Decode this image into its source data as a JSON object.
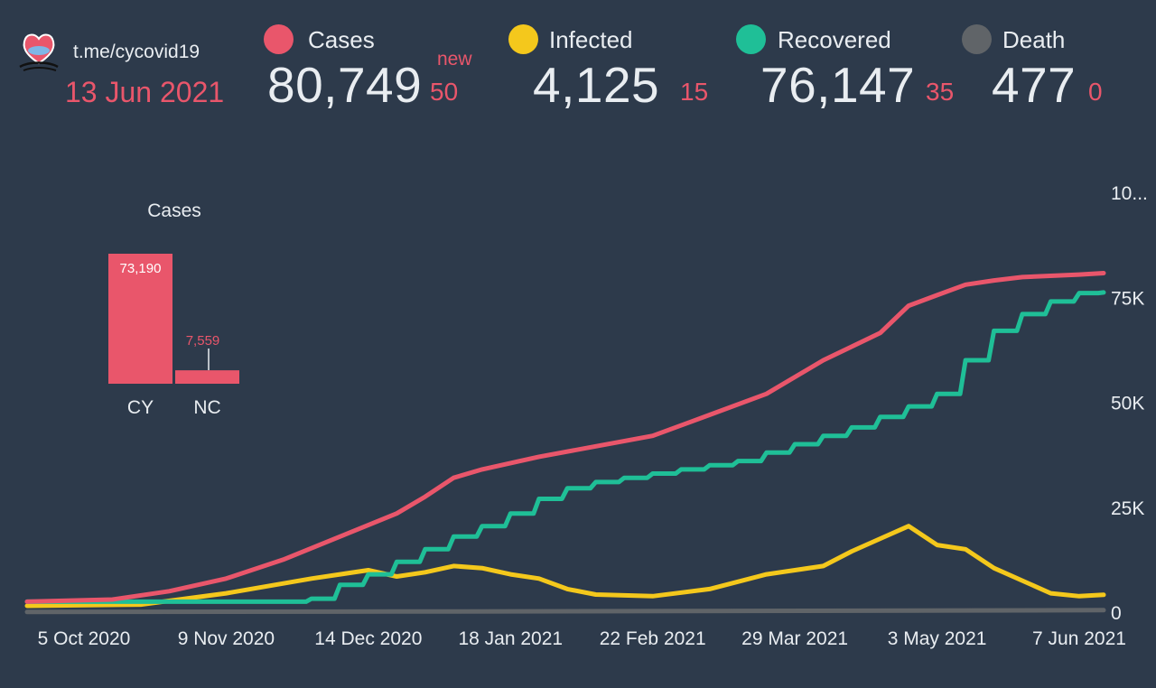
{
  "header": {
    "source": "t.me/cycovid19",
    "date": "13 Jun 2021",
    "new_word": "new"
  },
  "stats": [
    {
      "label": "Cases",
      "value": "80,749",
      "new": "50",
      "color": "#e9566b"
    },
    {
      "label": "Infected",
      "value": "4,125",
      "new": "15",
      "color": "#f4c81c"
    },
    {
      "label": "Recovered",
      "value": "76,147",
      "new": "35",
      "color": "#1fbf97"
    },
    {
      "label": "Death",
      "value": "477",
      "new": "0",
      "color": "#606468"
    }
  ],
  "chart_data": [
    {
      "type": "line",
      "x_ticks": [
        "5 Oct 2020",
        "9 Nov 2020",
        "14 Dec 2020",
        "18 Jan 2021",
        "22 Feb 2021",
        "29 Mar 2021",
        "3 May 2021",
        "7 Jun 2021"
      ],
      "y_ticks": [
        "0",
        "25K",
        "50K",
        "75K",
        "10..."
      ],
      "ylim": [
        0,
        100000
      ],
      "x_start": "2020-09-21",
      "x_end": "2021-06-13",
      "series": [
        {
          "name": "Cases",
          "color": "#e9566b",
          "x": [
            "2020-09-21",
            "2020-10-12",
            "2020-10-26",
            "2020-11-09",
            "2020-11-23",
            "2020-12-07",
            "2020-12-21",
            "2020-12-28",
            "2021-01-04",
            "2021-01-11",
            "2021-01-18",
            "2021-01-25",
            "2021-02-08",
            "2021-02-22",
            "2021-03-08",
            "2021-03-22",
            "2021-04-05",
            "2021-04-19",
            "2021-04-26",
            "2021-05-03",
            "2021-05-10",
            "2021-05-17",
            "2021-05-24",
            "2021-06-07",
            "2021-06-13"
          ],
          "y": [
            2500,
            3000,
            5000,
            8000,
            12500,
            18000,
            23500,
            27500,
            32000,
            34000,
            35500,
            37000,
            39500,
            42000,
            47000,
            52000,
            60000,
            66500,
            73000,
            75500,
            78000,
            79000,
            79800,
            80400,
            80749
          ]
        },
        {
          "name": "Recovered",
          "color": "#1fbf97",
          "x": [
            "2020-09-21",
            "2020-11-30",
            "2020-12-07",
            "2020-12-14",
            "2020-12-21",
            "2020-12-28",
            "2021-01-04",
            "2021-01-11",
            "2021-01-18",
            "2021-01-25",
            "2021-02-01",
            "2021-02-08",
            "2021-02-15",
            "2021-02-22",
            "2021-03-01",
            "2021-03-08",
            "2021-03-15",
            "2021-03-22",
            "2021-03-29",
            "2021-04-05",
            "2021-04-12",
            "2021-04-19",
            "2021-04-26",
            "2021-05-03",
            "2021-05-10",
            "2021-05-17",
            "2021-05-24",
            "2021-05-31",
            "2021-06-07",
            "2021-06-13"
          ],
          "y": [
            2500,
            3200,
            6500,
            9000,
            12000,
            15000,
            18000,
            20500,
            23500,
            27000,
            29500,
            31000,
            32000,
            33000,
            34000,
            35000,
            36000,
            38000,
            40000,
            42000,
            44000,
            46500,
            49000,
            52000,
            60000,
            67000,
            71000,
            74000,
            76000,
            76147
          ]
        },
        {
          "name": "Infected",
          "color": "#f4c81c",
          "x": [
            "2020-09-21",
            "2020-10-19",
            "2020-11-09",
            "2020-11-30",
            "2020-12-14",
            "2020-12-21",
            "2020-12-28",
            "2021-01-04",
            "2021-01-11",
            "2021-01-18",
            "2021-01-25",
            "2021-02-01",
            "2021-02-08",
            "2021-02-22",
            "2021-03-08",
            "2021-03-22",
            "2021-04-05",
            "2021-04-12",
            "2021-04-19",
            "2021-04-26",
            "2021-05-03",
            "2021-05-10",
            "2021-05-17",
            "2021-05-24",
            "2021-05-31",
            "2021-06-07",
            "2021-06-13"
          ],
          "y": [
            1500,
            1800,
            4500,
            8000,
            10000,
            8500,
            9500,
            11000,
            10500,
            9000,
            8000,
            5500,
            4200,
            3800,
            5500,
            9000,
            11000,
            14500,
            17500,
            20500,
            16000,
            15000,
            10500,
            7500,
            4500,
            3800,
            4125
          ]
        },
        {
          "name": "Death",
          "color": "#606468",
          "x": [
            "2020-09-21",
            "2020-12-21",
            "2021-03-01",
            "2021-06-13"
          ],
          "y": [
            50,
            150,
            250,
            477
          ]
        }
      ]
    },
    {
      "type": "bar",
      "title": "Cases",
      "categories": [
        "CY",
        "NC"
      ],
      "values": [
        73190,
        7559
      ],
      "value_labels": [
        "73,190",
        "7,559"
      ],
      "color": "#e9566b"
    }
  ]
}
